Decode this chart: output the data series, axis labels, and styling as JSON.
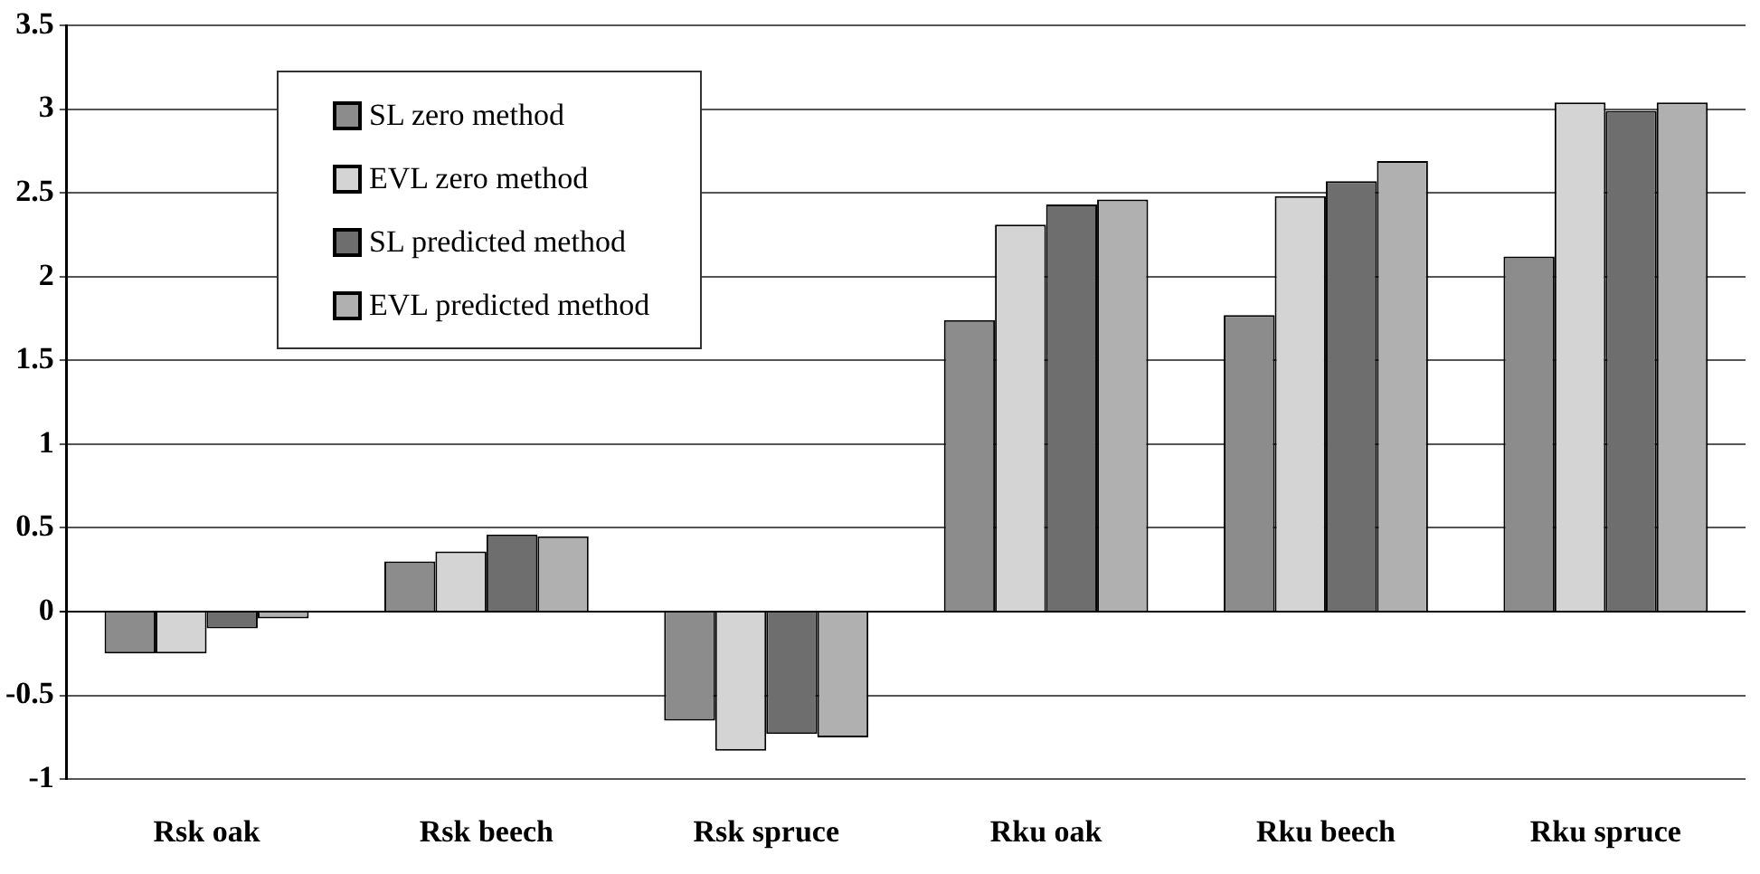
{
  "chart_data": {
    "type": "bar",
    "categories": [
      "Rsk oak",
      "Rsk beech",
      "Rsk spruce",
      "Rku oak",
      "Rku beech",
      "Rku spruce"
    ],
    "series": [
      {
        "name": "SL zero method",
        "color": "#8c8c8c",
        "values": [
          -0.25,
          0.3,
          -0.65,
          1.74,
          1.77,
          2.12
        ]
      },
      {
        "name": "EVL zero method",
        "color": "#d4d4d4",
        "values": [
          -0.25,
          0.36,
          -0.83,
          2.31,
          2.48,
          3.04
        ]
      },
      {
        "name": "SL predicted method",
        "color": "#6e6e6e",
        "values": [
          -0.1,
          0.46,
          -0.73,
          2.43,
          2.57,
          2.99
        ]
      },
      {
        "name": "EVL predicted method",
        "color": "#b0b0b0",
        "values": [
          -0.04,
          0.45,
          -0.75,
          2.46,
          2.69,
          3.04
        ]
      }
    ],
    "ylim": [
      -1,
      3.5
    ],
    "yticks": [
      -1,
      -0.5,
      0,
      0.5,
      1,
      1.5,
      2,
      2.5,
      3,
      3.5
    ],
    "grid": "y",
    "legend": "top left"
  }
}
